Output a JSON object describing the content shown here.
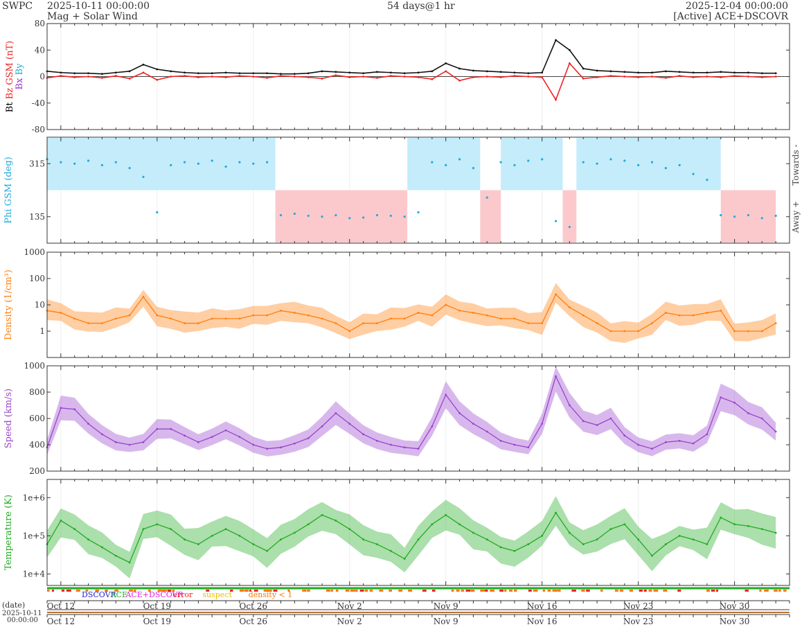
{
  "header": {
    "agency": "SWPC",
    "start": "2025-10-11 00:00:00",
    "product": "Mag + Solar Wind",
    "span": "54 days@1 hr",
    "end": "2025-12-04 00:00:00",
    "source": "[Active] ACE+DSCOVR"
  },
  "chart_data": {
    "type": "line",
    "time_range": [
      "2025-10-11 00:00",
      "2025-12-04 00:00"
    ],
    "x_ticks": [
      "Oct 12",
      "Oct 19",
      "Oct 26",
      "Nov 2",
      "Nov 9",
      "Nov 16",
      "Nov 23",
      "Nov 30"
    ],
    "grid": true,
    "legend": {
      "items": [
        {
          "label": "DSCOVR",
          "color": "#2222cc"
        },
        {
          "label": "ACE",
          "color": "#22aa22"
        },
        {
          "label": "ACE+DSCOVR",
          "color": "#dd22dd"
        },
        {
          "label": "error",
          "color": "#ee2222"
        },
        {
          "label": "suspect",
          "color": "#eebb00"
        },
        {
          "label": "density < 1",
          "color": "#ff7700"
        }
      ]
    },
    "date_label": "(date)",
    "date_sub": "2025-10-11",
    "date_sub2": "00:00:00",
    "panels": [
      {
        "id": "mag",
        "ylabel_parts": [
          {
            "text": "Bt",
            "color": "#000000"
          },
          {
            "text": "Bz GSM (nT)",
            "color": "#ee2222"
          },
          {
            "text": "Bx",
            "color": "#9933cc"
          },
          {
            "text": "By",
            "color": "#22aacc"
          }
        ],
        "ylim": [
          -80,
          80
        ],
        "yticks": [
          "80",
          "40",
          "0",
          "-40",
          "-80"
        ],
        "series": [
          {
            "name": "Bt",
            "color": "#111111",
            "x": [
              0,
              1,
              2,
              3,
              4,
              5,
              6,
              7,
              8,
              9,
              10,
              11,
              12,
              13,
              14,
              15,
              16,
              17,
              18,
              19,
              20,
              21,
              22,
              23,
              24,
              25,
              26,
              27,
              28,
              29,
              30,
              31,
              32,
              33,
              34,
              35,
              36,
              37,
              38,
              39,
              40,
              41,
              42,
              43,
              44,
              45,
              46,
              47,
              48,
              49,
              50,
              51,
              52,
              53
            ],
            "values": [
              8,
              6,
              5,
              5,
              4,
              6,
              8,
              18,
              11,
              8,
              6,
              5,
              5,
              6,
              5,
              5,
              5,
              4,
              4,
              5,
              8,
              7,
              6,
              5,
              7,
              6,
              5,
              6,
              8,
              20,
              12,
              9,
              8,
              7,
              6,
              5,
              6,
              55,
              40,
              12,
              9,
              8,
              7,
              6,
              6,
              8,
              7,
              6,
              6,
              7,
              6,
              6,
              5,
              5
            ]
          },
          {
            "name": "Bz GSM",
            "color": "#ee2222",
            "x": [
              0,
              1,
              2,
              3,
              4,
              5,
              6,
              7,
              8,
              9,
              10,
              11,
              12,
              13,
              14,
              15,
              16,
              17,
              18,
              19,
              20,
              21,
              22,
              23,
              24,
              25,
              26,
              27,
              28,
              29,
              30,
              31,
              32,
              33,
              34,
              35,
              36,
              37,
              38,
              39,
              40,
              41,
              42,
              43,
              44,
              45,
              46,
              47,
              48,
              49,
              50,
              51,
              52,
              53
            ],
            "values": [
              -2,
              1,
              -1,
              0,
              -2,
              1,
              -3,
              6,
              -5,
              0,
              1,
              -1,
              0,
              -1,
              1,
              0,
              -2,
              1,
              0,
              -1,
              -3,
              2,
              -1,
              0,
              -2,
              1,
              0,
              -1,
              -4,
              8,
              -6,
              -1,
              0,
              -1,
              1,
              0,
              -1,
              -35,
              20,
              -3,
              -1,
              1,
              0,
              -1,
              0,
              -2,
              1,
              -1,
              0,
              -1,
              1,
              0,
              -1,
              0
            ]
          }
        ]
      },
      {
        "id": "phi",
        "ylabel": "Phi GSM (deg)",
        "ylim": [
          45,
          405
        ],
        "yticks": [
          "315",
          "135"
        ],
        "right_labels": [
          "Towards -",
          "Away +"
        ],
        "sectors": [
          {
            "start": 0,
            "end": 16.6,
            "value": "towards"
          },
          {
            "start": 16.6,
            "end": 26.2,
            "value": "away"
          },
          {
            "start": 26.2,
            "end": 31.5,
            "value": "towards"
          },
          {
            "start": 31.5,
            "end": 33.0,
            "value": "away"
          },
          {
            "start": 33.0,
            "end": 37.5,
            "value": "towards"
          },
          {
            "start": 37.5,
            "end": 38.5,
            "value": "away"
          },
          {
            "start": 38.5,
            "end": 49.0,
            "value": "towards"
          },
          {
            "start": 49.0,
            "end": 53.0,
            "value": "away"
          }
        ],
        "series": [
          {
            "name": "Phi GSM",
            "color": "#22aadd",
            "x": [
              0,
              1,
              2,
              3,
              4,
              5,
              6,
              7,
              8,
              9,
              10,
              11,
              12,
              13,
              14,
              15,
              16,
              17,
              18,
              19,
              20,
              21,
              22,
              23,
              24,
              25,
              26,
              27,
              28,
              29,
              30,
              31,
              32,
              33,
              34,
              35,
              36,
              37,
              38,
              39,
              40,
              41,
              42,
              43,
              44,
              45,
              46,
              47,
              48,
              49,
              50,
              51,
              52,
              53
            ],
            "values": [
              330,
              320,
              315,
              325,
              310,
              320,
              300,
              270,
              150,
              310,
              320,
              315,
              325,
              305,
              320,
              315,
              320,
              140,
              145,
              138,
              135,
              140,
              130,
              132,
              140,
              138,
              135,
              150,
              320,
              310,
              330,
              300,
              200,
              320,
              310,
              325,
              330,
              120,
              100,
              320,
              315,
              330,
              325,
              310,
              320,
              300,
              310,
              280,
              260,
              140,
              135,
              140,
              130,
              138
            ]
          }
        ]
      },
      {
        "id": "density",
        "ylabel": "Density (1/cm³)",
        "ylim": [
          0.1,
          1000
        ],
        "log": true,
        "yticks": [
          "1000",
          "100",
          "10",
          "1"
        ],
        "series": [
          {
            "name": "Density",
            "color": "#ff7f0e",
            "x": [
              0,
              1,
              2,
              3,
              4,
              5,
              6,
              7,
              8,
              9,
              10,
              11,
              12,
              13,
              14,
              15,
              16,
              17,
              18,
              19,
              20,
              21,
              22,
              23,
              24,
              25,
              26,
              27,
              28,
              29,
              30,
              31,
              32,
              33,
              34,
              35,
              36,
              37,
              38,
              39,
              40,
              41,
              42,
              43,
              44,
              45,
              46,
              47,
              48,
              49,
              50,
              51,
              52,
              53
            ],
            "values": [
              6,
              5,
              3,
              2,
              2,
              3,
              4,
              20,
              4,
              3,
              2,
              2,
              3,
              3,
              3,
              4,
              4,
              6,
              5,
              4,
              3,
              2,
              1,
              2,
              2,
              3,
              3,
              5,
              4,
              10,
              6,
              5,
              4,
              3,
              3,
              2,
              2,
              25,
              8,
              4,
              2,
              1,
              1,
              1,
              2,
              5,
              4,
              4,
              5,
              6,
              1,
              1,
              1,
              2
            ]
          }
        ]
      },
      {
        "id": "speed",
        "ylabel": "Speed (km/s)",
        "ylim": [
          200,
          1000
        ],
        "yticks": [
          "1000",
          "800",
          "600",
          "400",
          "200"
        ],
        "series": [
          {
            "name": "Speed",
            "color": "#9944cc",
            "x": [
              0,
              1,
              2,
              3,
              4,
              5,
              6,
              7,
              8,
              9,
              10,
              11,
              12,
              13,
              14,
              15,
              16,
              17,
              18,
              19,
              20,
              21,
              22,
              23,
              24,
              25,
              26,
              27,
              28,
              29,
              30,
              31,
              32,
              33,
              34,
              35,
              36,
              37,
              38,
              39,
              40,
              41,
              42,
              43,
              44,
              45,
              46,
              47,
              48,
              49,
              50,
              51,
              52,
              53
            ],
            "values": [
              380,
              680,
              670,
              560,
              480,
              420,
              400,
              420,
              520,
              520,
              470,
              420,
              460,
              510,
              460,
              400,
              370,
              380,
              410,
              450,
              540,
              640,
              560,
              480,
              430,
              400,
              380,
              370,
              540,
              780,
              640,
              560,
              500,
              430,
              400,
              380,
              560,
              920,
              700,
              580,
              550,
              600,
              470,
              400,
              370,
              420,
              430,
              410,
              480,
              760,
              720,
              640,
              600,
              500
            ]
          }
        ]
      },
      {
        "id": "temperature",
        "ylabel": "Temperature (K)",
        "ylim": [
          5000,
          3000000
        ],
        "log": true,
        "yticks": [
          "1e+6",
          "1e+5",
          "1e+4"
        ],
        "series": [
          {
            "name": "Temperature",
            "color": "#22aa22",
            "x": [
              0,
              1,
              2,
              3,
              4,
              5,
              6,
              7,
              8,
              9,
              10,
              11,
              12,
              13,
              14,
              15,
              16,
              17,
              18,
              19,
              20,
              21,
              22,
              23,
              24,
              25,
              26,
              27,
              28,
              29,
              30,
              31,
              32,
              33,
              34,
              35,
              36,
              37,
              38,
              39,
              40,
              41,
              42,
              43,
              44,
              45,
              46,
              47,
              48,
              49,
              50,
              51,
              52,
              53
            ],
            "values": [
              60000,
              250000,
              150000,
              80000,
              50000,
              30000,
              20000,
              150000,
              200000,
              150000,
              80000,
              60000,
              100000,
              150000,
              100000,
              60000,
              40000,
              80000,
              120000,
              200000,
              350000,
              250000,
              150000,
              80000,
              60000,
              40000,
              25000,
              80000,
              200000,
              350000,
              200000,
              120000,
              80000,
              50000,
              40000,
              60000,
              100000,
              400000,
              120000,
              60000,
              80000,
              150000,
              200000,
              80000,
              30000,
              60000,
              100000,
              80000,
              60000,
              300000,
              200000,
              180000,
              150000,
              120000
            ]
          }
        ]
      }
    ]
  }
}
